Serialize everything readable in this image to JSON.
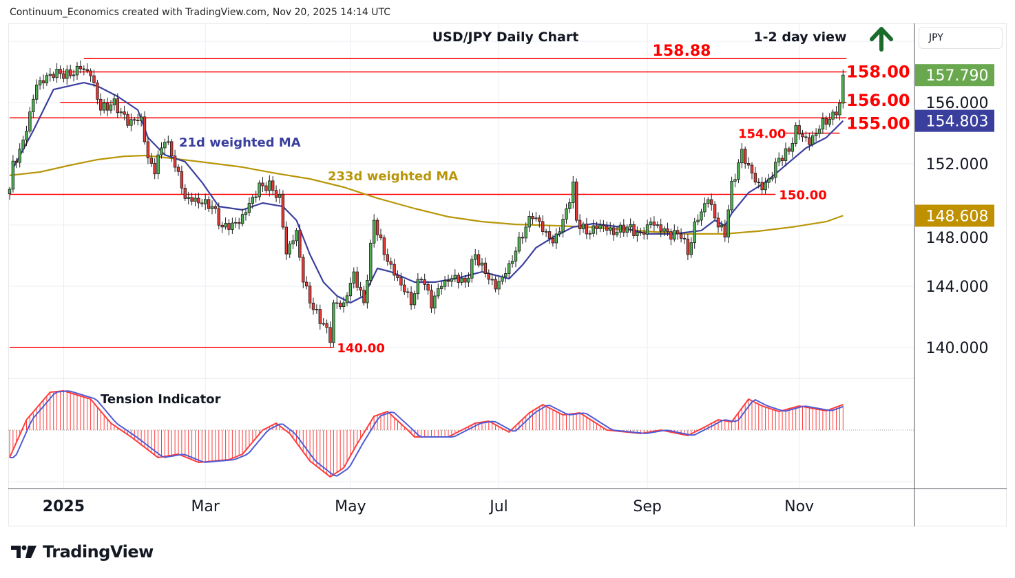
{
  "attribution": "Continuum_Economics created with TradingView.com, Nov 20, 2025 14:14 UTC",
  "currency_selector": "JPY",
  "brand": "TradingView",
  "chart_data": {
    "type": "candlestick",
    "title": "USD/JPY Daily Chart",
    "subtitle": "1-2 day view",
    "outlook_icon": "up-arrow-icon",
    "ylim": [
      138.0,
      161.3
    ],
    "xlim": [
      0,
      268
    ],
    "x_unit": "trading-day index",
    "y_ticks": [
      "140.000",
      "144.000",
      "148.000",
      "152.000",
      "156.000"
    ],
    "y_tick_values": [
      140,
      144,
      148,
      152,
      156
    ],
    "x_ticks": [
      {
        "label": "2025",
        "day": 16,
        "bold": true
      },
      {
        "label": "Mar",
        "day": 58
      },
      {
        "label": "May",
        "day": 101
      },
      {
        "label": "Jul",
        "day": 145
      },
      {
        "label": "Sep",
        "day": 189
      },
      {
        "label": "Nov",
        "day": 234
      }
    ],
    "close_keypoints": [
      [
        0,
        150.34
      ],
      [
        1,
        151.91
      ],
      [
        4,
        153.48
      ],
      [
        8,
        157.3
      ],
      [
        13,
        157.98
      ],
      [
        18,
        157.75
      ],
      [
        21,
        158.2
      ],
      [
        24,
        157.75
      ],
      [
        27,
        155.5
      ],
      [
        31,
        155.96
      ],
      [
        35,
        154.83
      ],
      [
        39,
        155.06
      ],
      [
        41,
        152.36
      ],
      [
        43,
        151.69
      ],
      [
        46,
        153.71
      ],
      [
        49,
        151.91
      ],
      [
        52,
        149.66
      ],
      [
        56,
        149.44
      ],
      [
        60,
        149.21
      ],
      [
        63,
        147.87
      ],
      [
        68,
        148.31
      ],
      [
        71,
        149.44
      ],
      [
        74,
        150.56
      ],
      [
        77,
        150.56
      ],
      [
        80,
        149.66
      ],
      [
        82,
        146.07
      ],
      [
        85,
        147.42
      ],
      [
        87,
        144.27
      ],
      [
        90,
        142.47
      ],
      [
        93,
        141.57
      ],
      [
        95,
        140.67
      ],
      [
        96,
        142.92
      ],
      [
        99,
        142.92
      ],
      [
        102,
        144.94
      ],
      [
        105,
        142.92
      ],
      [
        108,
        148.31
      ],
      [
        111,
        146.07
      ],
      [
        114,
        144.72
      ],
      [
        119,
        142.92
      ],
      [
        122,
        144.72
      ],
      [
        125,
        142.92
      ],
      [
        128,
        144.27
      ],
      [
        132,
        144.72
      ],
      [
        135,
        144.27
      ],
      [
        138,
        146.07
      ],
      [
        140,
        145.17
      ],
      [
        144,
        143.82
      ],
      [
        148,
        145.17
      ],
      [
        152,
        147.42
      ],
      [
        155,
        148.76
      ],
      [
        158,
        147.87
      ],
      [
        161,
        146.97
      ],
      [
        164,
        148.31
      ],
      [
        167,
        150.56
      ],
      [
        168,
        148.31
      ],
      [
        171,
        147.42
      ],
      [
        175,
        147.87
      ],
      [
        179,
        147.42
      ],
      [
        183,
        147.87
      ],
      [
        187,
        147.42
      ],
      [
        190,
        148.31
      ],
      [
        193,
        147.87
      ],
      [
        196,
        147.42
      ],
      [
        199,
        147.42
      ],
      [
        201,
        146.07
      ],
      [
        203,
        147.87
      ],
      [
        207,
        149.66
      ],
      [
        210,
        147.87
      ],
      [
        212,
        147.42
      ],
      [
        214,
        150.56
      ],
      [
        217,
        152.81
      ],
      [
        219,
        151.91
      ],
      [
        221,
        151.01
      ],
      [
        223,
        150.56
      ],
      [
        225,
        151.01
      ],
      [
        228,
        152.36
      ],
      [
        231,
        152.81
      ],
      [
        233,
        154.16
      ],
      [
        237,
        153.26
      ],
      [
        241,
        154.61
      ],
      [
        244,
        155.06
      ],
      [
        246,
        155.96
      ],
      [
        247,
        157.79
      ]
    ],
    "last_price": "157.790",
    "series": [
      {
        "name": "21d weighted MA",
        "color": "#3a3f9e",
        "last_value": "154.803",
        "points": [
          [
            1,
            151.69
          ],
          [
            7,
            154.16
          ],
          [
            13,
            156.85
          ],
          [
            22,
            157.3
          ],
          [
            26,
            157.08
          ],
          [
            32,
            156.4
          ],
          [
            38,
            155.51
          ],
          [
            41,
            153.71
          ],
          [
            46,
            152.58
          ],
          [
            52,
            152.13
          ],
          [
            57,
            150.79
          ],
          [
            62,
            149.21
          ],
          [
            69,
            148.99
          ],
          [
            75,
            149.44
          ],
          [
            81,
            149.21
          ],
          [
            85,
            148.31
          ],
          [
            89,
            146.07
          ],
          [
            93,
            144.27
          ],
          [
            97,
            143.37
          ],
          [
            101,
            142.92
          ],
          [
            105,
            143.37
          ],
          [
            109,
            145.17
          ],
          [
            113,
            144.94
          ],
          [
            120,
            144.27
          ],
          [
            126,
            144.27
          ],
          [
            132,
            144.49
          ],
          [
            140,
            144.94
          ],
          [
            144,
            144.72
          ],
          [
            148,
            144.49
          ],
          [
            152,
            145.39
          ],
          [
            156,
            146.52
          ],
          [
            161,
            147.19
          ],
          [
            167,
            147.87
          ],
          [
            173,
            148.09
          ],
          [
            181,
            147.87
          ],
          [
            189,
            147.42
          ],
          [
            197,
            147.42
          ],
          [
            205,
            147.64
          ],
          [
            209,
            148.31
          ],
          [
            212,
            147.96
          ],
          [
            214,
            148.76
          ],
          [
            219,
            150.11
          ],
          [
            224,
            150.79
          ],
          [
            230,
            151.91
          ],
          [
            236,
            153.03
          ],
          [
            242,
            153.71
          ],
          [
            247,
            154.8
          ]
        ]
      },
      {
        "name": "233d weighted MA",
        "color": "#b8960a",
        "last_value": "148.608",
        "points": [
          [
            0,
            151.24
          ],
          [
            9,
            151.46
          ],
          [
            18,
            151.91
          ],
          [
            26,
            152.27
          ],
          [
            34,
            152.49
          ],
          [
            40,
            152.54
          ],
          [
            48,
            152.36
          ],
          [
            58,
            152.09
          ],
          [
            69,
            151.78
          ],
          [
            79,
            151.37
          ],
          [
            89,
            151.01
          ],
          [
            99,
            150.47
          ],
          [
            109,
            149.75
          ],
          [
            120,
            149.08
          ],
          [
            130,
            148.54
          ],
          [
            140,
            148.22
          ],
          [
            150,
            148.04
          ],
          [
            161,
            147.96
          ],
          [
            171,
            147.87
          ],
          [
            181,
            147.73
          ],
          [
            191,
            147.55
          ],
          [
            201,
            147.42
          ],
          [
            212,
            147.42
          ],
          [
            222,
            147.6
          ],
          [
            232,
            147.87
          ],
          [
            242,
            148.22
          ],
          [
            247,
            148.61
          ]
        ]
      }
    ],
    "levels": [
      {
        "value": 158.88,
        "label": "158.88",
        "from": 22,
        "to": 248
      },
      {
        "value": 158.0,
        "label": "158.00",
        "from": 15,
        "to": 248
      },
      {
        "value": 156.0,
        "label": "156.00",
        "from": 15,
        "to": 248
      },
      {
        "value": 155.0,
        "label": "155.00",
        "from": 0,
        "to": 248
      },
      {
        "value": 154.0,
        "label": "154.00",
        "from": 230,
        "to": 246
      },
      {
        "value": 150.0,
        "label": "150.00",
        "from": 0,
        "to": 227
      },
      {
        "value": 140.0,
        "label": "140.00",
        "from": 0,
        "to": 96
      }
    ],
    "indicator": {
      "name": "Tension Indicator",
      "ylim": [
        -1.5,
        1.3
      ],
      "points": [
        [
          0,
          -0.8
        ],
        [
          5,
          0.3
        ],
        [
          12,
          1.1
        ],
        [
          16,
          1.14
        ],
        [
          24,
          0.9
        ],
        [
          30,
          0.2
        ],
        [
          36,
          -0.2
        ],
        [
          40,
          -0.5
        ],
        [
          44,
          -0.8
        ],
        [
          50,
          -0.7
        ],
        [
          56,
          -0.94
        ],
        [
          65,
          -0.86
        ],
        [
          69,
          -0.7
        ],
        [
          75,
          0
        ],
        [
          79,
          0.2
        ],
        [
          83,
          -0.1
        ],
        [
          89,
          -0.9
        ],
        [
          95,
          -1.36
        ],
        [
          99,
          -1.1
        ],
        [
          103,
          -0.4
        ],
        [
          108,
          0.4
        ],
        [
          112,
          0.54
        ],
        [
          118,
          0
        ],
        [
          120,
          -0.2
        ],
        [
          130,
          -0.2
        ],
        [
          138,
          0.2
        ],
        [
          142,
          0.26
        ],
        [
          148,
          -0.06
        ],
        [
          154,
          0.5
        ],
        [
          158,
          0.74
        ],
        [
          164,
          0.44
        ],
        [
          169,
          0.5
        ],
        [
          177,
          0
        ],
        [
          187,
          -0.1
        ],
        [
          193,
          0
        ],
        [
          201,
          -0.16
        ],
        [
          207,
          0.14
        ],
        [
          210,
          0.3
        ],
        [
          214,
          0.24
        ],
        [
          219,
          0.9
        ],
        [
          223,
          0.7
        ],
        [
          228,
          0.54
        ],
        [
          234,
          0.7
        ],
        [
          242,
          0.56
        ],
        [
          247,
          0.74
        ]
      ]
    },
    "colors": {
      "up": "#4caf50",
      "down": "#e53935",
      "level": "#ff0000",
      "last_price_badge": "#6aa84f",
      "arrow": "#1b6b2a"
    }
  }
}
